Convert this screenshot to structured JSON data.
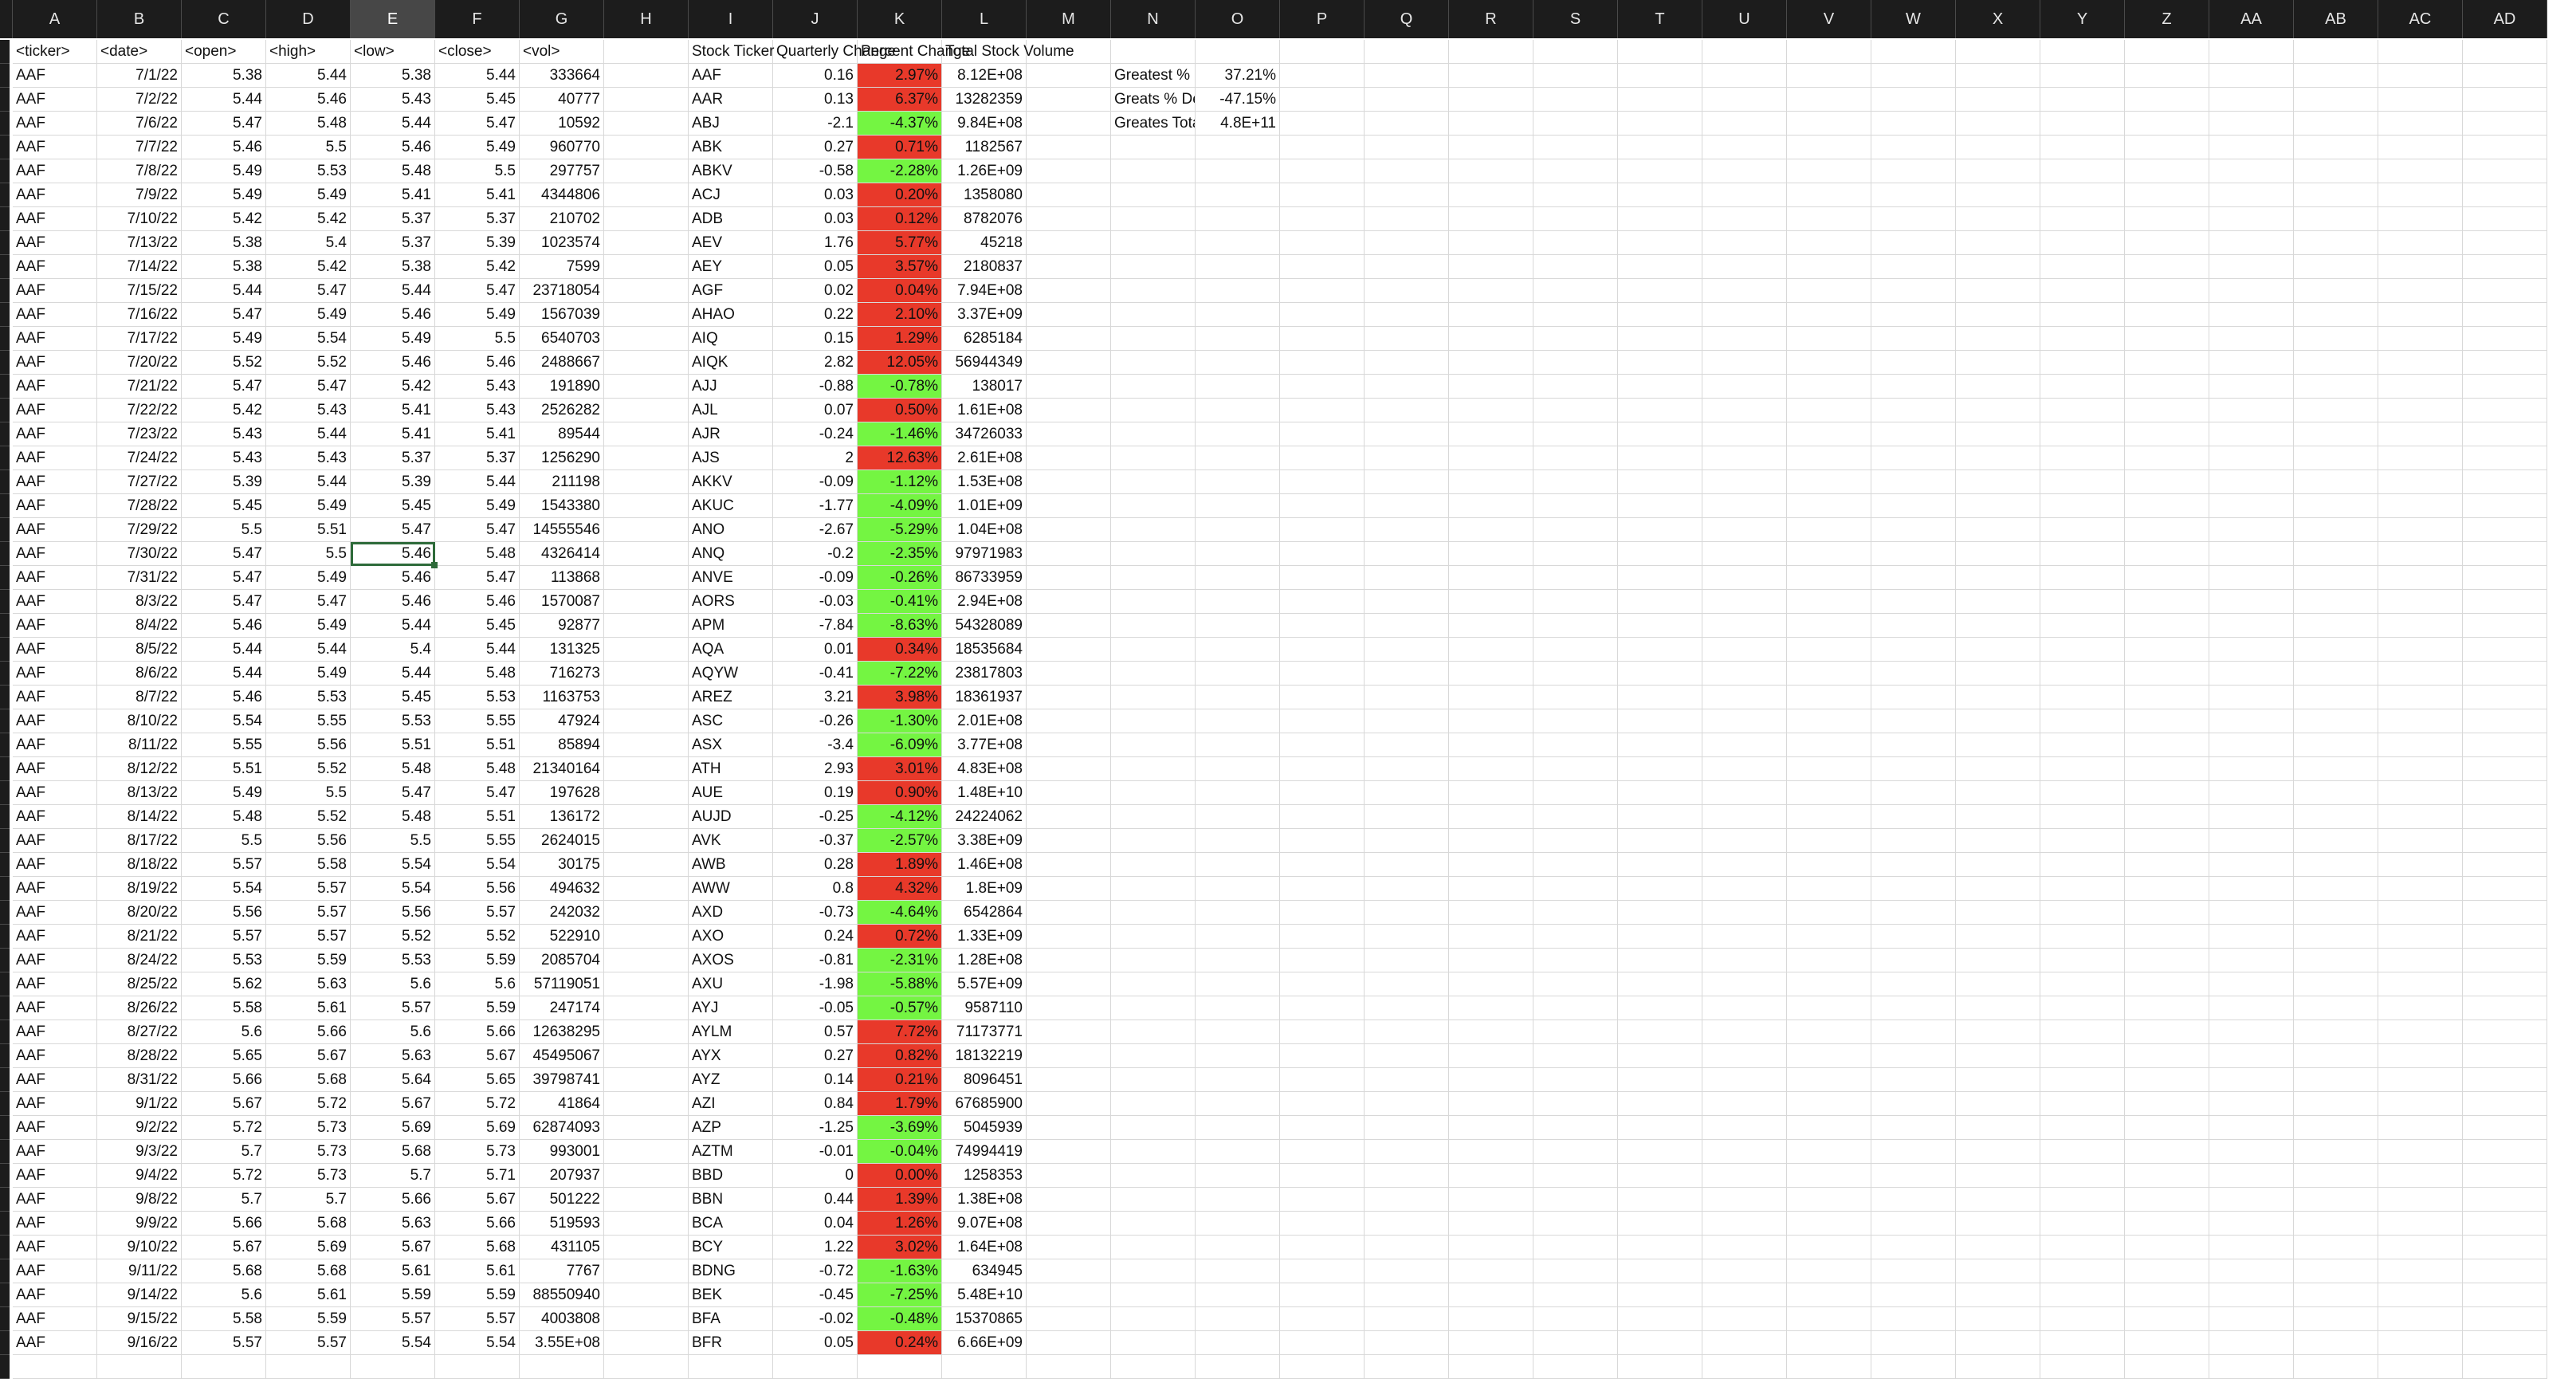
{
  "column_headers": [
    "A",
    "B",
    "C",
    "D",
    "E",
    "F",
    "G",
    "H",
    "I",
    "J",
    "K",
    "L",
    "M",
    "N",
    "O",
    "P",
    "Q",
    "R",
    "S",
    "T",
    "U",
    "V",
    "W",
    "X",
    "Y",
    "Z",
    "AA",
    "AB",
    "AC",
    "AD"
  ],
  "selected_column": "E",
  "selected_cell": {
    "col": "E",
    "row": 21
  },
  "headers_row": [
    "<ticker>",
    "<date>",
    "<open>",
    "<high>",
    "<low>",
    "<close>",
    "<vol>",
    "",
    "Stock Ticker",
    "Quarterly Change",
    "Percent Change",
    "Total Stock Volume"
  ],
  "summary": [
    {
      "label": "Greatest % Increase",
      "value": "37.21%"
    },
    {
      "label": "Greats % Decrease",
      "value": "-47.15%"
    },
    {
      "label": "Greates Total Volume",
      "value": "4.8E+11"
    }
  ],
  "rows": [
    [
      "AAF",
      "7/1/22",
      "5.38",
      "5.44",
      "5.38",
      "5.44",
      "333664",
      "AAF",
      "0.16",
      "2.97%",
      "8.12E+08"
    ],
    [
      "AAF",
      "7/2/22",
      "5.44",
      "5.46",
      "5.43",
      "5.45",
      "40777",
      "AAR",
      "0.13",
      "6.37%",
      "13282359"
    ],
    [
      "AAF",
      "7/6/22",
      "5.47",
      "5.48",
      "5.44",
      "5.47",
      "10592",
      "ABJ",
      "-2.1",
      "-4.37%",
      "9.84E+08"
    ],
    [
      "AAF",
      "7/7/22",
      "5.46",
      "5.5",
      "5.46",
      "5.49",
      "960770",
      "ABK",
      "0.27",
      "0.71%",
      "1182567"
    ],
    [
      "AAF",
      "7/8/22",
      "5.49",
      "5.53",
      "5.48",
      "5.5",
      "297757",
      "ABKV",
      "-0.58",
      "-2.28%",
      "1.26E+09"
    ],
    [
      "AAF",
      "7/9/22",
      "5.49",
      "5.49",
      "5.41",
      "5.41",
      "4344806",
      "ACJ",
      "0.03",
      "0.20%",
      "1358080"
    ],
    [
      "AAF",
      "7/10/22",
      "5.42",
      "5.42",
      "5.37",
      "5.37",
      "210702",
      "ADB",
      "0.03",
      "0.12%",
      "8782076"
    ],
    [
      "AAF",
      "7/13/22",
      "5.38",
      "5.4",
      "5.37",
      "5.39",
      "1023574",
      "AEV",
      "1.76",
      "5.77%",
      "45218"
    ],
    [
      "AAF",
      "7/14/22",
      "5.38",
      "5.42",
      "5.38",
      "5.42",
      "7599",
      "AEY",
      "0.05",
      "3.57%",
      "2180837"
    ],
    [
      "AAF",
      "7/15/22",
      "5.44",
      "5.47",
      "5.44",
      "5.47",
      "23718054",
      "AGF",
      "0.02",
      "0.04%",
      "7.94E+08"
    ],
    [
      "AAF",
      "7/16/22",
      "5.47",
      "5.49",
      "5.46",
      "5.49",
      "1567039",
      "AHAO",
      "0.22",
      "2.10%",
      "3.37E+09"
    ],
    [
      "AAF",
      "7/17/22",
      "5.49",
      "5.54",
      "5.49",
      "5.5",
      "6540703",
      "AIQ",
      "0.15",
      "1.29%",
      "6285184"
    ],
    [
      "AAF",
      "7/20/22",
      "5.52",
      "5.52",
      "5.46",
      "5.46",
      "2488667",
      "AIQK",
      "2.82",
      "12.05%",
      "56944349"
    ],
    [
      "AAF",
      "7/21/22",
      "5.47",
      "5.47",
      "5.42",
      "5.43",
      "191890",
      "AJJ",
      "-0.88",
      "-0.78%",
      "138017"
    ],
    [
      "AAF",
      "7/22/22",
      "5.42",
      "5.43",
      "5.41",
      "5.43",
      "2526282",
      "AJL",
      "0.07",
      "0.50%",
      "1.61E+08"
    ],
    [
      "AAF",
      "7/23/22",
      "5.43",
      "5.44",
      "5.41",
      "5.41",
      "89544",
      "AJR",
      "-0.24",
      "-1.46%",
      "34726033"
    ],
    [
      "AAF",
      "7/24/22",
      "5.43",
      "5.43",
      "5.37",
      "5.37",
      "1256290",
      "AJS",
      "2",
      "12.63%",
      "2.61E+08"
    ],
    [
      "AAF",
      "7/27/22",
      "5.39",
      "5.44",
      "5.39",
      "5.44",
      "211198",
      "AKKV",
      "-0.09",
      "-1.12%",
      "1.53E+08"
    ],
    [
      "AAF",
      "7/28/22",
      "5.45",
      "5.49",
      "5.45",
      "5.49",
      "1543380",
      "AKUC",
      "-1.77",
      "-4.09%",
      "1.01E+09"
    ],
    [
      "AAF",
      "7/29/22",
      "5.5",
      "5.51",
      "5.47",
      "5.47",
      "14555546",
      "ANO",
      "-2.67",
      "-5.29%",
      "1.04E+08"
    ],
    [
      "AAF",
      "7/30/22",
      "5.47",
      "5.5",
      "5.46",
      "5.48",
      "4326414",
      "ANQ",
      "-0.2",
      "-2.35%",
      "97971983"
    ],
    [
      "AAF",
      "7/31/22",
      "5.47",
      "5.49",
      "5.46",
      "5.47",
      "113868",
      "ANVE",
      "-0.09",
      "-0.26%",
      "86733959"
    ],
    [
      "AAF",
      "8/3/22",
      "5.47",
      "5.47",
      "5.46",
      "5.46",
      "1570087",
      "AORS",
      "-0.03",
      "-0.41%",
      "2.94E+08"
    ],
    [
      "AAF",
      "8/4/22",
      "5.46",
      "5.49",
      "5.44",
      "5.45",
      "92877",
      "APM",
      "-7.84",
      "-8.63%",
      "54328089"
    ],
    [
      "AAF",
      "8/5/22",
      "5.44",
      "5.44",
      "5.4",
      "5.44",
      "131325",
      "AQA",
      "0.01",
      "0.34%",
      "18535684"
    ],
    [
      "AAF",
      "8/6/22",
      "5.44",
      "5.49",
      "5.44",
      "5.48",
      "716273",
      "AQYW",
      "-0.41",
      "-7.22%",
      "23817803"
    ],
    [
      "AAF",
      "8/7/22",
      "5.46",
      "5.53",
      "5.45",
      "5.53",
      "1163753",
      "AREZ",
      "3.21",
      "3.98%",
      "18361937"
    ],
    [
      "AAF",
      "8/10/22",
      "5.54",
      "5.55",
      "5.53",
      "5.55",
      "47924",
      "ASC",
      "-0.26",
      "-1.30%",
      "2.01E+08"
    ],
    [
      "AAF",
      "8/11/22",
      "5.55",
      "5.56",
      "5.51",
      "5.51",
      "85894",
      "ASX",
      "-3.4",
      "-6.09%",
      "3.77E+08"
    ],
    [
      "AAF",
      "8/12/22",
      "5.51",
      "5.52",
      "5.48",
      "5.48",
      "21340164",
      "ATH",
      "2.93",
      "3.01%",
      "4.83E+08"
    ],
    [
      "AAF",
      "8/13/22",
      "5.49",
      "5.5",
      "5.47",
      "5.47",
      "197628",
      "AUE",
      "0.19",
      "0.90%",
      "1.48E+10"
    ],
    [
      "AAF",
      "8/14/22",
      "5.48",
      "5.52",
      "5.48",
      "5.51",
      "136172",
      "AUJD",
      "-0.25",
      "-4.12%",
      "24224062"
    ],
    [
      "AAF",
      "8/17/22",
      "5.5",
      "5.56",
      "5.5",
      "5.55",
      "2624015",
      "AVK",
      "-0.37",
      "-2.57%",
      "3.38E+09"
    ],
    [
      "AAF",
      "8/18/22",
      "5.57",
      "5.58",
      "5.54",
      "5.54",
      "30175",
      "AWB",
      "0.28",
      "1.89%",
      "1.46E+08"
    ],
    [
      "AAF",
      "8/19/22",
      "5.54",
      "5.57",
      "5.54",
      "5.56",
      "494632",
      "AWW",
      "0.8",
      "4.32%",
      "1.8E+09"
    ],
    [
      "AAF",
      "8/20/22",
      "5.56",
      "5.57",
      "5.56",
      "5.57",
      "242032",
      "AXD",
      "-0.73",
      "-4.64%",
      "6542864"
    ],
    [
      "AAF",
      "8/21/22",
      "5.57",
      "5.57",
      "5.52",
      "5.52",
      "522910",
      "AXO",
      "0.24",
      "0.72%",
      "1.33E+09"
    ],
    [
      "AAF",
      "8/24/22",
      "5.53",
      "5.59",
      "5.53",
      "5.59",
      "2085704",
      "AXOS",
      "-0.81",
      "-2.31%",
      "1.28E+08"
    ],
    [
      "AAF",
      "8/25/22",
      "5.62",
      "5.63",
      "5.6",
      "5.6",
      "57119051",
      "AXU",
      "-1.98",
      "-5.88%",
      "5.57E+09"
    ],
    [
      "AAF",
      "8/26/22",
      "5.58",
      "5.61",
      "5.57",
      "5.59",
      "247174",
      "AYJ",
      "-0.05",
      "-0.57%",
      "9587110"
    ],
    [
      "AAF",
      "8/27/22",
      "5.6",
      "5.66",
      "5.6",
      "5.66",
      "12638295",
      "AYLM",
      "0.57",
      "7.72%",
      "71173771"
    ],
    [
      "AAF",
      "8/28/22",
      "5.65",
      "5.67",
      "5.63",
      "5.67",
      "45495067",
      "AYX",
      "0.27",
      "0.82%",
      "18132219"
    ],
    [
      "AAF",
      "8/31/22",
      "5.66",
      "5.68",
      "5.64",
      "5.65",
      "39798741",
      "AYZ",
      "0.14",
      "0.21%",
      "8096451"
    ],
    [
      "AAF",
      "9/1/22",
      "5.67",
      "5.72",
      "5.67",
      "5.72",
      "41864",
      "AZI",
      "0.84",
      "1.79%",
      "67685900"
    ],
    [
      "AAF",
      "9/2/22",
      "5.72",
      "5.73",
      "5.69",
      "5.69",
      "62874093",
      "AZP",
      "-1.25",
      "-3.69%",
      "5045939"
    ],
    [
      "AAF",
      "9/3/22",
      "5.7",
      "5.73",
      "5.68",
      "5.73",
      "993001",
      "AZTM",
      "-0.01",
      "-0.04%",
      "74994419"
    ],
    [
      "AAF",
      "9/4/22",
      "5.72",
      "5.73",
      "5.7",
      "5.71",
      "207937",
      "BBD",
      "0",
      "0.00%",
      "1258353"
    ],
    [
      "AAF",
      "9/8/22",
      "5.7",
      "5.7",
      "5.66",
      "5.67",
      "501222",
      "BBN",
      "0.44",
      "1.39%",
      "1.38E+08"
    ],
    [
      "AAF",
      "9/9/22",
      "5.66",
      "5.68",
      "5.63",
      "5.66",
      "519593",
      "BCA",
      "0.04",
      "1.26%",
      "9.07E+08"
    ],
    [
      "AAF",
      "9/10/22",
      "5.67",
      "5.69",
      "5.67",
      "5.68",
      "431105",
      "BCY",
      "1.22",
      "3.02%",
      "1.64E+08"
    ],
    [
      "AAF",
      "9/11/22",
      "5.68",
      "5.68",
      "5.61",
      "5.61",
      "7767",
      "BDNG",
      "-0.72",
      "-1.63%",
      "634945"
    ],
    [
      "AAF",
      "9/14/22",
      "5.6",
      "5.61",
      "5.59",
      "5.59",
      "88550940",
      "BEK",
      "-0.45",
      "-7.25%",
      "5.48E+10"
    ],
    [
      "AAF",
      "9/15/22",
      "5.58",
      "5.59",
      "5.57",
      "5.57",
      "4003808",
      "BFA",
      "-0.02",
      "-0.48%",
      "15370865"
    ],
    [
      "AAF",
      "9/16/22",
      "5.57",
      "5.57",
      "5.54",
      "5.54",
      "3.55E+08",
      "BFR",
      "0.05",
      "0.24%",
      "6.66E+09"
    ]
  ],
  "colors": {
    "positive": "#e8392a",
    "negative": "#74f542",
    "header_bg": "#1c1c1c",
    "selected_outline": "#2e6b3a"
  }
}
